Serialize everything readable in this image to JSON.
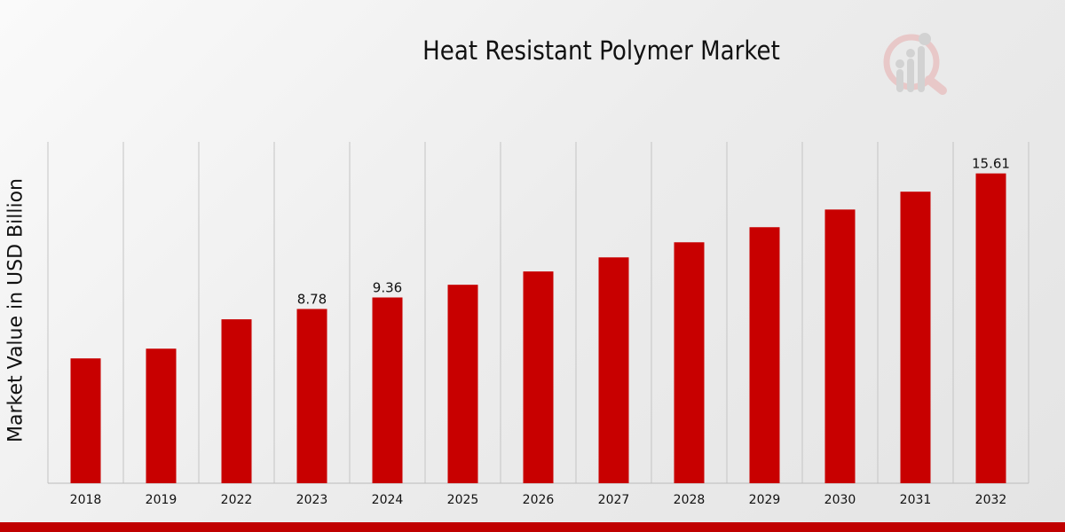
{
  "chart_data": {
    "type": "bar",
    "title": "Heat Resistant Polymer Market",
    "xlabel": "",
    "ylabel": "Market Value in USD Billion",
    "categories": [
      "2018",
      "2019",
      "2022",
      "2023",
      "2024",
      "2025",
      "2026",
      "2027",
      "2028",
      "2029",
      "2030",
      "2031",
      "2032"
    ],
    "values": [
      6.29,
      6.78,
      8.26,
      8.78,
      9.36,
      10.0,
      10.67,
      11.38,
      12.14,
      12.9,
      13.79,
      14.69,
      15.61
    ],
    "data_labels": {
      "2023": "8.78",
      "2024": "9.36",
      "2032": "15.61"
    },
    "ylim": [
      0,
      17.2
    ],
    "grid": "vertical",
    "bar_color": "#c80000"
  }
}
